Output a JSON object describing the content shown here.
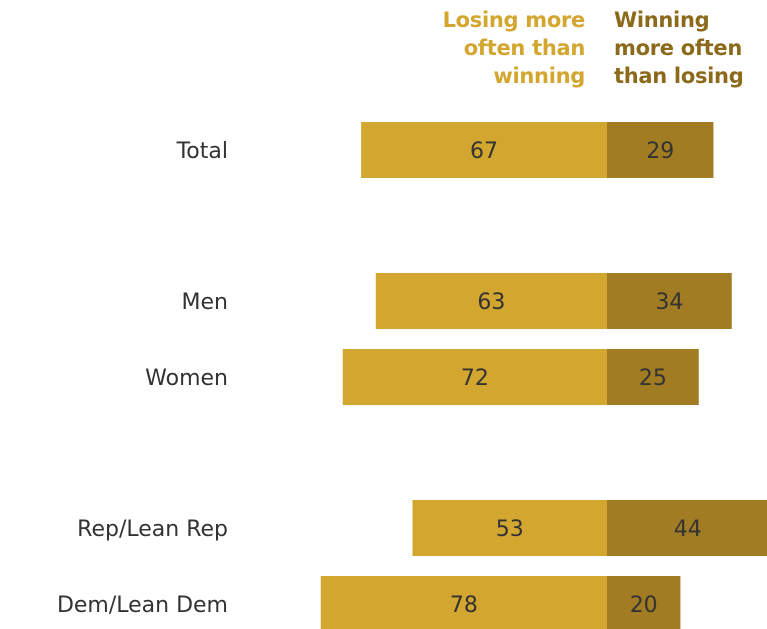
{
  "chart_data": {
    "type": "bar",
    "orientation": "horizontal-diverging",
    "categories": [
      "Total",
      "Men",
      "Women",
      "Rep/Lean Rep",
      "Dem/Lean Dem"
    ],
    "groups": [
      [
        0
      ],
      [
        1,
        2
      ],
      [
        3,
        4
      ]
    ],
    "series": [
      {
        "name": "Losing more often than winning",
        "values": [
          67,
          63,
          72,
          53,
          78
        ],
        "color": "#d3a62f"
      },
      {
        "name": "Winning more often than losing",
        "values": [
          29,
          34,
          25,
          44,
          20
        ],
        "color": "#a27c22"
      }
    ],
    "legend": {
      "negative_label": "Losing more\noften than\nwinning",
      "positive_label": "Winning\nmore often\nthan losing"
    },
    "label_color": "#333333",
    "legend_neg_color": "#d3a62f",
    "legend_pos_color": "#8c6a1c"
  }
}
